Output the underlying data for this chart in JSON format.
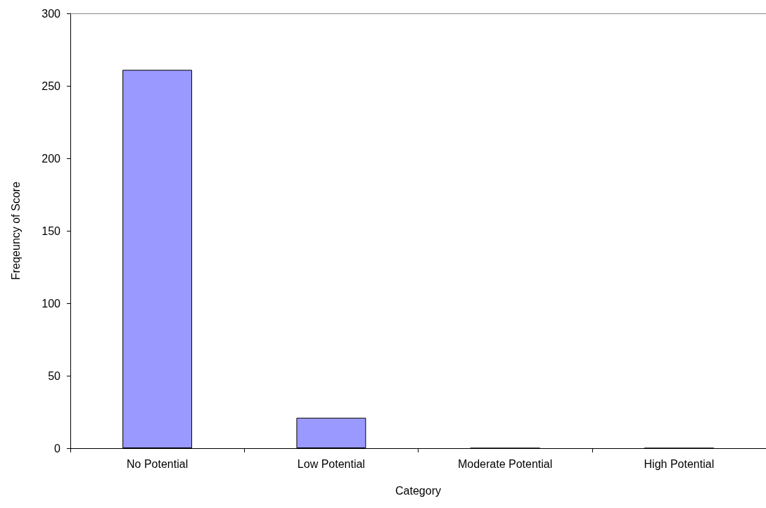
{
  "chart_data": {
    "type": "bar",
    "xlabel": "Category",
    "ylabel": "Freqeuncy of Score",
    "categories": [
      "No Potential",
      "Low Potential",
      "Moderate Potential",
      "High Potential"
    ],
    "values": [
      261,
      21,
      0,
      0
    ],
    "color": "#9999ff",
    "ylim": [
      0,
      300
    ],
    "yticks": [
      0,
      50,
      100,
      150,
      200,
      250,
      300
    ],
    "grid": false
  }
}
